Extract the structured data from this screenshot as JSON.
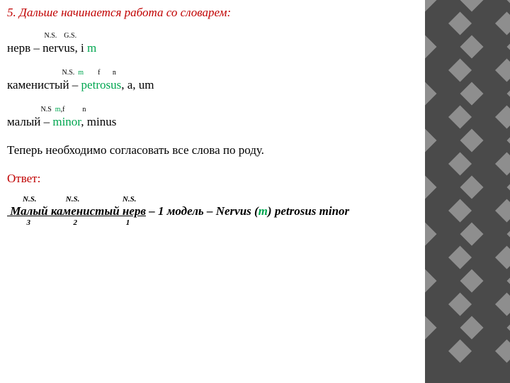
{
  "heading": "5. Дальше начинается работа со словарем:",
  "entry1": {
    "sup": "                     N.S.    G.S.",
    "main_pre": "нерв – nervus, i ",
    "main_grn": "m"
  },
  "entry2": {
    "sup_pre": "                               N.S.  ",
    "sup_grn": "m",
    "sup_post": "        f       n",
    "main_pre": "каменистый – ",
    "main_grn": "petrosus",
    "main_post": ", a, um"
  },
  "entry3": {
    "sup_pre": "                   N.S  ",
    "sup_grn": "m",
    "sup_mid": ",f          n",
    "main_pre": "малый – ",
    "main_grn": "minor",
    "main_post": ", minus"
  },
  "agree": "Теперь необходимо согласовать все слова по роду.",
  "answer_label": "Ответ:",
  "answer": {
    "sup": "        N.S.               N.S.                      N.S.",
    "underline": " Малый каменистый нерв",
    "rest_pre": " – 1 модель – Nervus (",
    "rest_grn": "m",
    "rest_post": ") petrosus minor",
    "sub": "          3                      2                         1"
  },
  "checker": {
    "dark": "#4a4a4a",
    "light": "#8e8e8e",
    "size": 33,
    "cols": 3,
    "rows": 14,
    "right_offset": 0
  }
}
